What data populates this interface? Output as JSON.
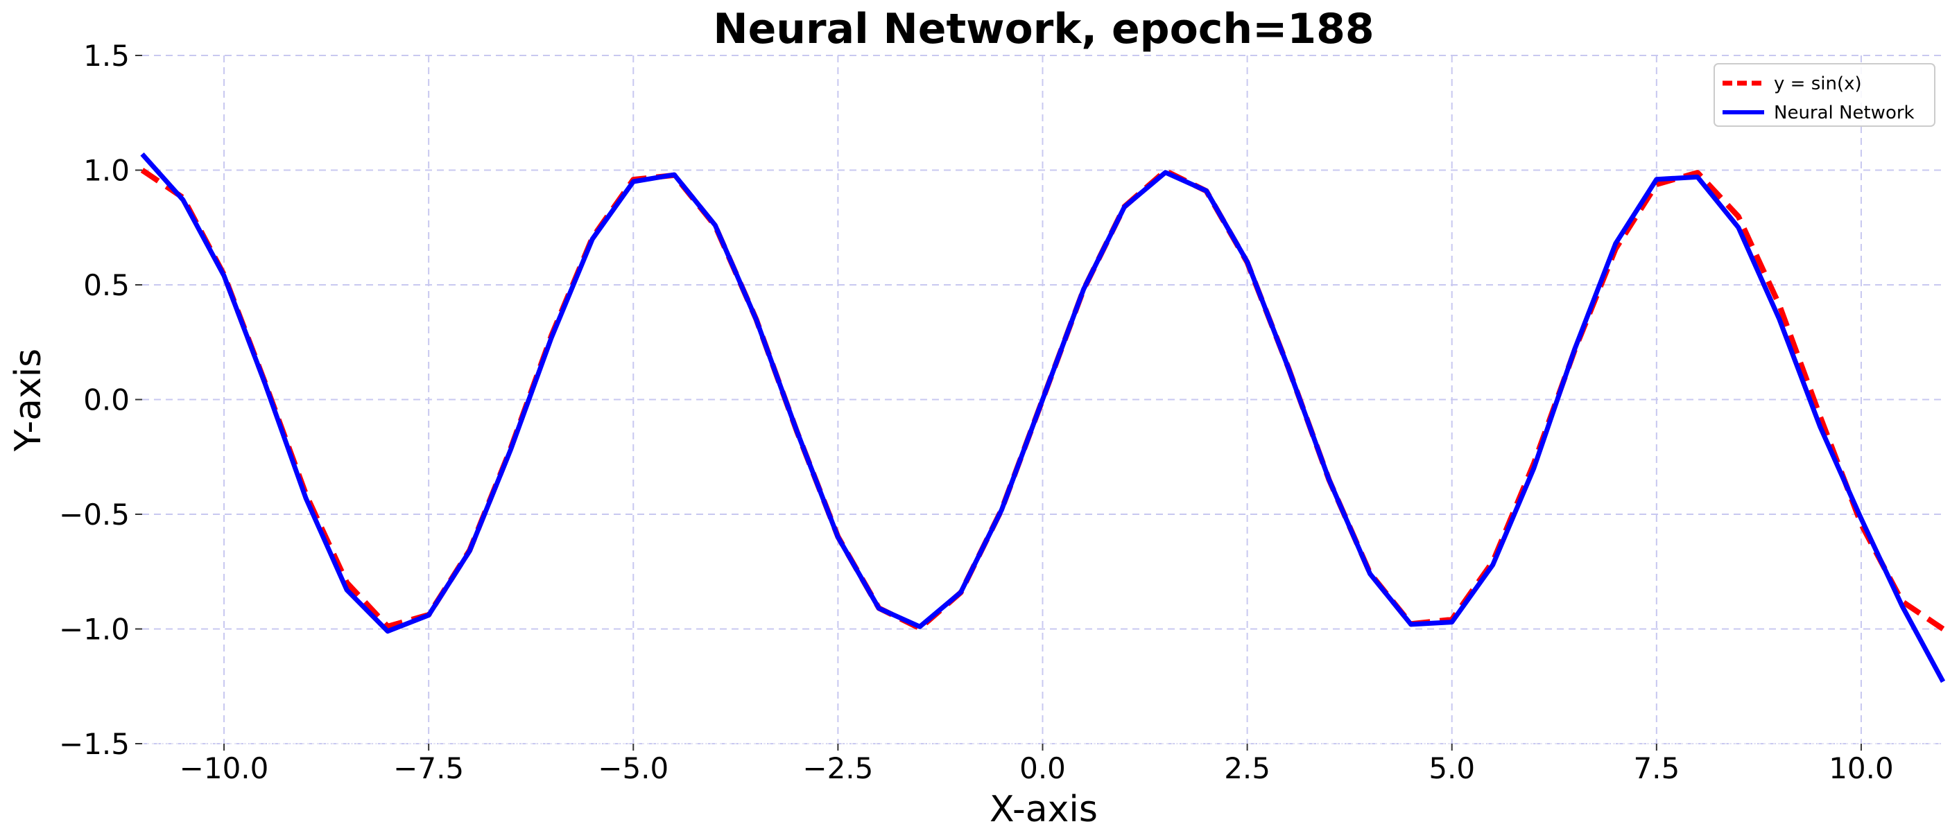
{
  "chart_data": {
    "type": "line",
    "title": "Neural Network, epoch=188",
    "xlabel": "X-axis",
    "ylabel": "Y-axis",
    "xlim": [
      -11,
      11
    ],
    "ylim": [
      -1.5,
      1.5
    ],
    "x_ticks": [
      -10.0,
      -7.5,
      -5.0,
      -2.5,
      0.0,
      2.5,
      5.0,
      7.5,
      10.0
    ],
    "x_tick_labels": [
      "−10.0",
      "−7.5",
      "−5.0",
      "−2.5",
      "0.0",
      "2.5",
      "5.0",
      "7.5",
      "10.0"
    ],
    "y_ticks": [
      1.5,
      1.0,
      0.5,
      0.0,
      -0.5,
      -1.0,
      -1.5
    ],
    "y_tick_labels": [
      "1.5",
      "1.0",
      "0.5",
      "0.0",
      "−0.5",
      "−1.0",
      "−1.5"
    ],
    "grid": true,
    "grid_color": "#c8c8f0",
    "legend_position": "top-right",
    "series": [
      {
        "name": "y = sin(x)",
        "color": "#ff0000",
        "style": "dashed",
        "x": [
          -11.0,
          -10.5,
          -10.0,
          -9.5,
          -9.0,
          -8.5,
          -8.0,
          -7.5,
          -7.0,
          -6.5,
          -6.0,
          -5.5,
          -5.0,
          -4.5,
          -4.0,
          -3.5,
          -3.0,
          -2.5,
          -2.0,
          -1.5,
          -1.0,
          -0.5,
          0.0,
          0.5,
          1.0,
          1.5,
          2.0,
          2.5,
          3.0,
          3.5,
          4.0,
          4.5,
          5.0,
          5.5,
          6.0,
          6.5,
          7.0,
          7.5,
          8.0,
          8.5,
          9.0,
          9.5,
          10.0,
          10.5,
          11.0
        ],
        "y": [
          1.0,
          0.88,
          0.544,
          0.075,
          -0.412,
          -0.798,
          -0.989,
          -0.938,
          -0.657,
          -0.215,
          0.279,
          0.706,
          0.959,
          0.978,
          0.757,
          0.351,
          -0.141,
          -0.598,
          -0.909,
          -0.997,
          -0.841,
          -0.479,
          0.0,
          0.479,
          0.841,
          0.997,
          0.909,
          0.598,
          0.141,
          -0.351,
          -0.757,
          -0.978,
          -0.959,
          -0.706,
          -0.279,
          0.215,
          0.657,
          0.938,
          0.989,
          0.798,
          0.412,
          -0.075,
          -0.544,
          -0.88,
          -1.0
        ]
      },
      {
        "name": "Neural Network",
        "color": "#0000ff",
        "style": "solid",
        "x": [
          -11.0,
          -10.5,
          -10.0,
          -9.5,
          -9.0,
          -8.5,
          -8.0,
          -7.5,
          -7.0,
          -6.5,
          -6.0,
          -5.5,
          -5.0,
          -4.5,
          -4.0,
          -3.5,
          -3.0,
          -2.5,
          -2.0,
          -1.5,
          -1.0,
          -0.5,
          0.0,
          0.5,
          1.0,
          1.5,
          2.0,
          2.5,
          3.0,
          3.5,
          4.0,
          4.5,
          5.0,
          5.5,
          6.0,
          6.5,
          7.0,
          7.5,
          8.0,
          8.5,
          9.0,
          9.5,
          10.0,
          10.5,
          11.0
        ],
        "y": [
          1.07,
          0.87,
          0.54,
          0.07,
          -0.43,
          -0.83,
          -1.01,
          -0.94,
          -0.66,
          -0.22,
          0.27,
          0.7,
          0.95,
          0.98,
          0.76,
          0.35,
          -0.14,
          -0.6,
          -0.91,
          -0.99,
          -0.84,
          -0.48,
          0.0,
          0.48,
          0.84,
          0.99,
          0.91,
          0.6,
          0.14,
          -0.35,
          -0.76,
          -0.98,
          -0.97,
          -0.72,
          -0.3,
          0.22,
          0.68,
          0.96,
          0.97,
          0.75,
          0.35,
          -0.12,
          -0.52,
          -0.9,
          -1.23
        ]
      }
    ]
  }
}
